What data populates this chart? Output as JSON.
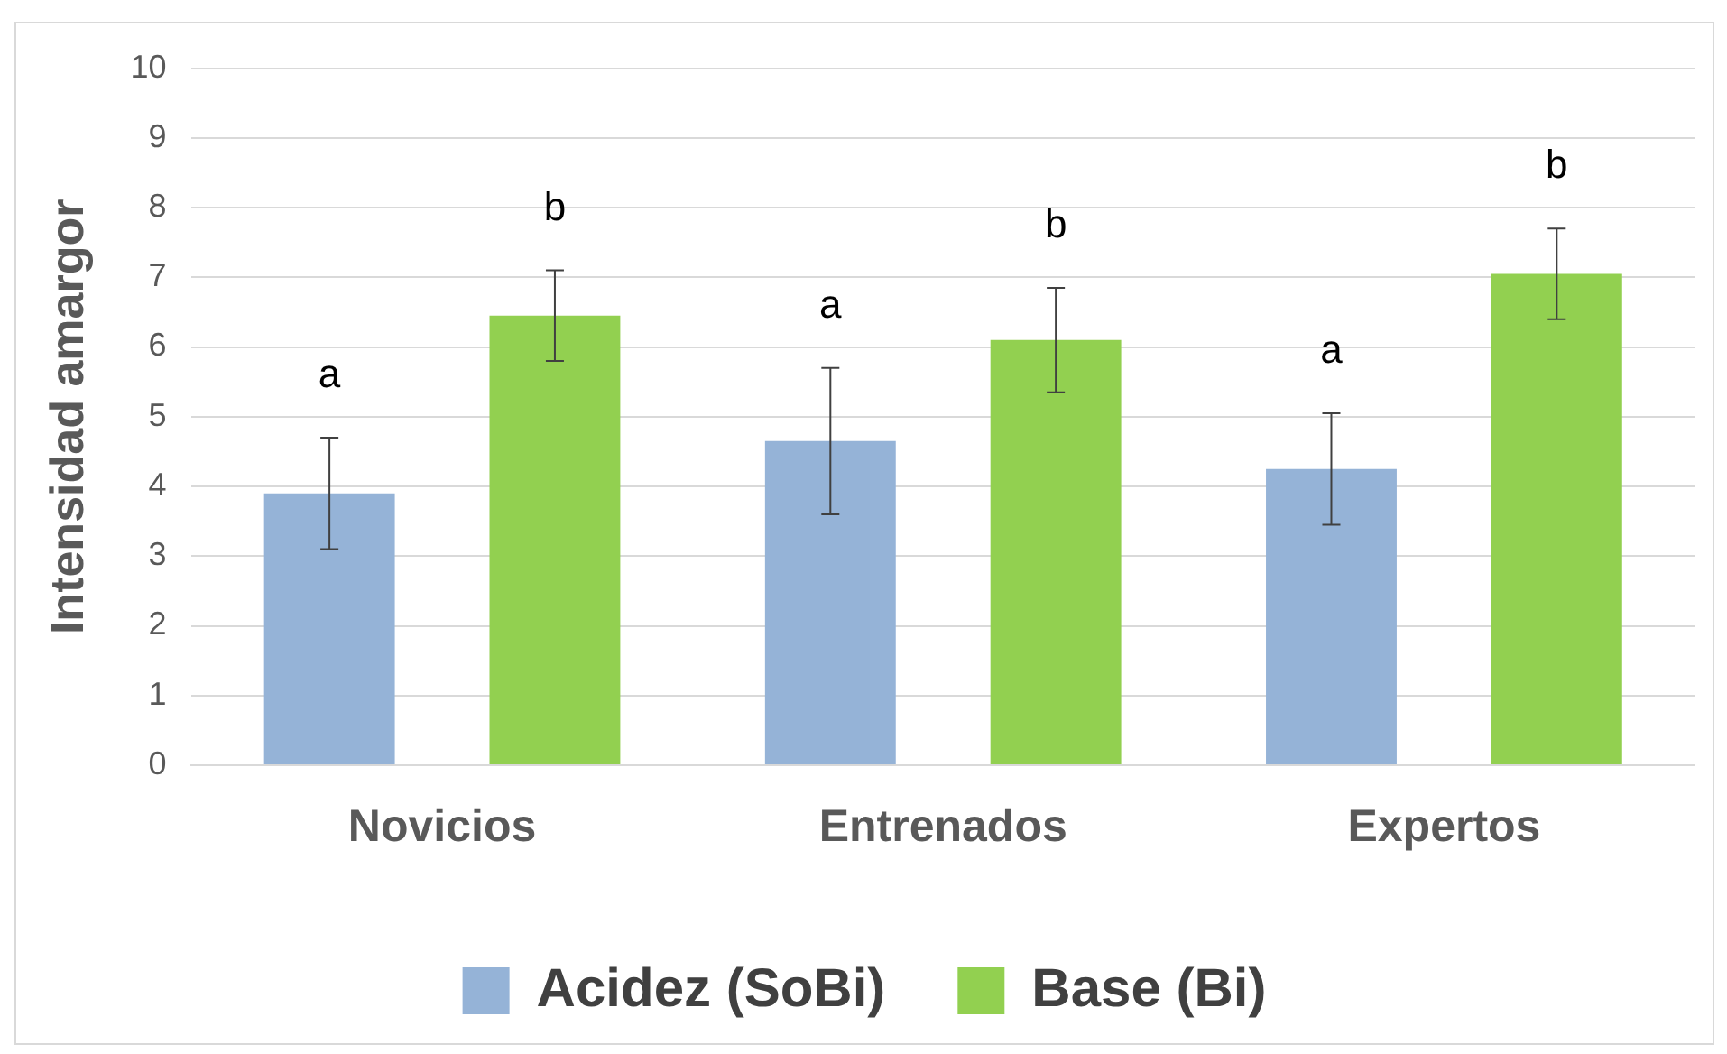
{
  "chart_data": {
    "type": "bar",
    "ylabel": "Intensidad amargor",
    "categories": [
      "Novicios",
      "Entrenados",
      "Expertos"
    ],
    "series": [
      {
        "name": "Acidez (SoBi)",
        "color": "#95b3d7",
        "values": [
          3.9,
          4.65,
          4.25
        ],
        "errors": [
          0.8,
          1.05,
          0.8
        ]
      },
      {
        "name": "Base (Bi)",
        "color": "#92d050",
        "values": [
          6.45,
          6.1,
          7.05
        ],
        "errors": [
          0.65,
          0.75,
          0.65
        ]
      }
    ],
    "annotations": [
      "a",
      "b",
      "a",
      "b",
      "a",
      "b"
    ],
    "ylim": [
      0,
      10
    ],
    "yticks": [
      0,
      1,
      2,
      3,
      4,
      5,
      6,
      7,
      8,
      9,
      10
    ],
    "grid": "y",
    "legend": "bottom"
  }
}
